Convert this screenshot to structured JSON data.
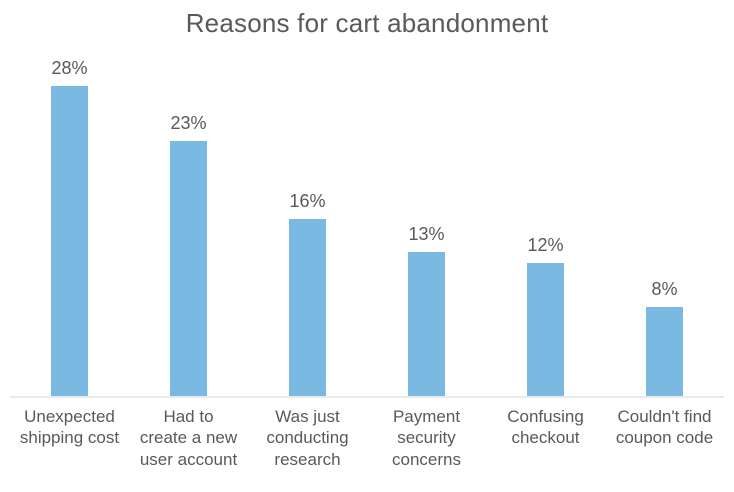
{
  "title": "Reasons for cart abandonment",
  "colors": {
    "bar": "#7abae2",
    "text": "#595959",
    "axis_line": "#e9e9e9",
    "background": "#ffffff"
  },
  "bars": [
    {
      "value_label": "28%",
      "category_display": "Unexpected\nshipping cost"
    },
    {
      "value_label": "23%",
      "category_display": "Had to\ncreate a new\nuser account"
    },
    {
      "value_label": "16%",
      "category_display": "Was just\nconducting\nresearch"
    },
    {
      "value_label": "13%",
      "category_display": "Payment\nsecurity\nconcerns"
    },
    {
      "value_label": "12%",
      "category_display": "Confusing\ncheckout"
    },
    {
      "value_label": "8%",
      "category_display": "Couldn't find\ncoupon code"
    }
  ],
  "chart_data": {
    "type": "bar",
    "title": "Reasons for cart abandonment",
    "categories": [
      "Unexpected shipping cost",
      "Had to create a new user account",
      "Was just conducting research",
      "Payment security concerns",
      "Confusing checkout",
      "Couldn't find coupon code"
    ],
    "values": [
      28,
      23,
      16,
      13,
      12,
      8
    ],
    "value_labels": [
      "28%",
      "23%",
      "16%",
      "13%",
      "12%",
      "8%"
    ],
    "xlabel": "",
    "ylabel": "",
    "ylim": [
      0,
      30
    ],
    "grid": false,
    "legend": false,
    "data_labels": "percent values above each bar",
    "y_axis_ticks": "hidden"
  }
}
